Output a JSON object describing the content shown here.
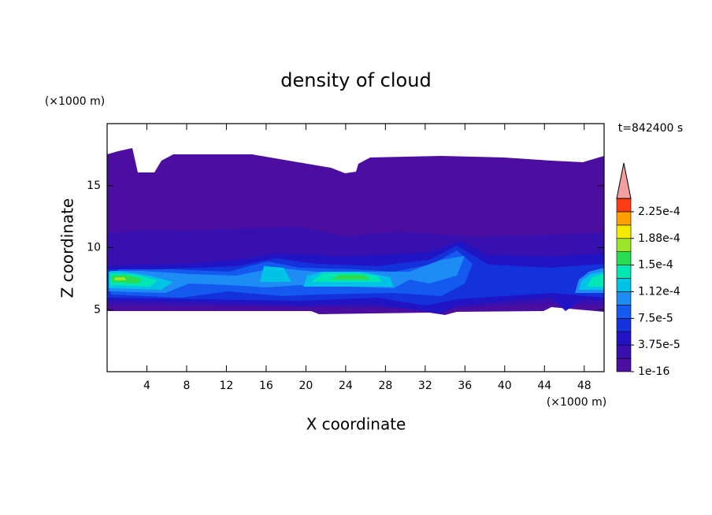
{
  "chart_data": {
    "type": "contour",
    "title": "density of cloud",
    "x_label": "X coordinate",
    "y_label": "Z coordinate",
    "x_unit": "(×1000 m)",
    "y_unit": "(×1000 m)",
    "annotation": "t=842400 s",
    "xlim": [
      0,
      50
    ],
    "ylim": [
      0,
      20
    ],
    "xticks": [
      4,
      8,
      12,
      16,
      20,
      24,
      28,
      32,
      36,
      40,
      44,
      48
    ],
    "yticks": [
      5,
      10,
      15
    ],
    "colorbar": {
      "lim": [
        1e-16,
        0.00024375
      ],
      "ticks": [
        {
          "value": 1e-16,
          "label": "1e-16"
        },
        {
          "value": 3.75e-05,
          "label": "3.75e-5"
        },
        {
          "value": 7.5e-05,
          "label": "7.5e-5"
        },
        {
          "value": 0.0001125,
          "label": "1.12e-4"
        },
        {
          "value": 0.00015,
          "label": "1.5e-4"
        },
        {
          "value": 0.0001875,
          "label": "1.88e-4"
        },
        {
          "value": 0.000225,
          "label": "2.25e-4"
        }
      ],
      "colors": [
        "#4c0ea0",
        "#3810b0",
        "#2014c4",
        "#1432dc",
        "#145af0",
        "#1e8cf5",
        "#00c3e6",
        "#00e6b4",
        "#28dc50",
        "#9ae628",
        "#f5eb00",
        "#ffa000",
        "#ff3c14"
      ],
      "extend_color": "#f5a0a0"
    }
  }
}
